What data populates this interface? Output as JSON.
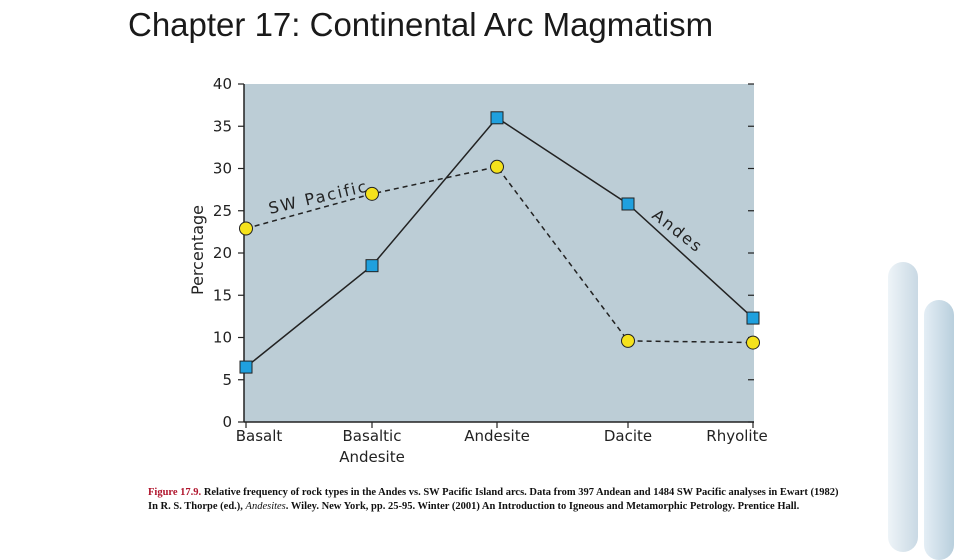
{
  "slide": {
    "title": "Chapter 17: Continental Arc Magmatism"
  },
  "chart_data": {
    "type": "line",
    "categories": [
      "Basalt",
      "Basaltic\nAndesite",
      "Andesite",
      "Dacite",
      "Rhyolite"
    ],
    "ylabel": "Percentage",
    "xlabel": "",
    "ylim": [
      0,
      40
    ],
    "yticks": [
      "0",
      "5",
      "10",
      "15",
      "20",
      "25",
      "30",
      "35",
      "40"
    ],
    "grid": false,
    "series": [
      {
        "name": "Andes",
        "values": [
          6.5,
          18.5,
          36,
          25.8,
          12.3
        ],
        "marker": "square",
        "line": "solid",
        "color": "#1fa0de"
      },
      {
        "name": "SW Pacific",
        "values": [
          22.9,
          27,
          30.2,
          9.6,
          9.4
        ],
        "marker": "circle",
        "line": "dashed",
        "color": "#f5e21c"
      }
    ],
    "plot_background": "#bccdd6"
  },
  "caption": {
    "figure_label": "Figure 17.9.",
    "text_a": " Relative frequency of rock types in the Andes vs. SW Pacific Island arcs. Data from 397 Andean and 1484 SW Pacific analyses in Ewart (1982) In R. S. Thorpe (ed.), ",
    "italic": "Andesites",
    "text_b": ". Wiley. New York, pp. 25-95.   Winter (2001) An Introduction to Igneous and Metamorphic Petrology. Prentice Hall."
  }
}
